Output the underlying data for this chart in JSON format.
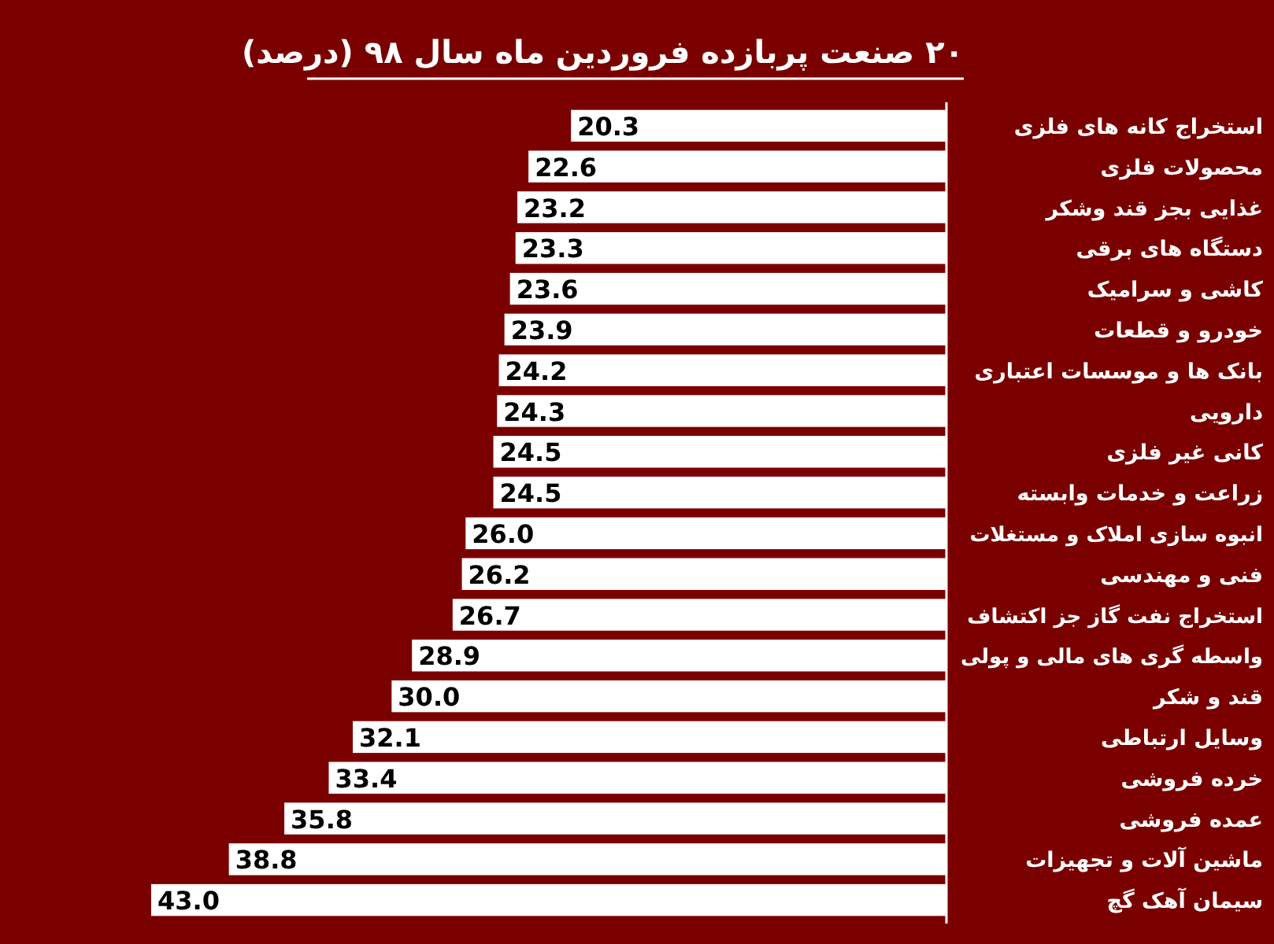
{
  "chart_data": {
    "type": "bar",
    "orientation": "horizontal",
    "title": "۲۰ صنعت پربازده فروردین ماه سال ۹۸ (درصد)",
    "categories": [
      "استخراج کانه های فلزی",
      "محصولات فلزی",
      "غذایی بجز قند وشکر",
      "دستگاه های برقی",
      "کاشی و سرامیک",
      "خودرو و قطعات",
      "بانک ها و موسسات اعتباری",
      "دارویی",
      "کانی غیر فلزی",
      "زراعت و خدمات وابسته",
      "انبوه سازی املاک و مستغلات",
      "فنی و مهندسی",
      "استخراج نفت گاز جز اکتشاف",
      "واسطه گری های مالی و پولی",
      "قند و شکر",
      "وسایل ارتباطی",
      "خرده فروشی",
      "عمده فروشی",
      "ماشین آلات و تجهیزات",
      "سیمان آهک گچ"
    ],
    "values": [
      20.3,
      22.6,
      23.2,
      23.3,
      23.6,
      23.9,
      24.2,
      24.3,
      24.5,
      24.5,
      26.0,
      26.2,
      26.7,
      28.9,
      30.0,
      32.1,
      33.4,
      35.8,
      38.8,
      43.0
    ],
    "value_labels": [
      "20.3",
      "22.6",
      "23.2",
      "23.3",
      "23.6",
      "23.9",
      "24.2",
      "24.3",
      "24.5",
      "24.5",
      "26.0",
      "26.2",
      "26.7",
      "28.9",
      "30.0",
      "32.1",
      "33.4",
      "35.8",
      "38.8",
      "43.0"
    ],
    "color": "#ffffff"
  }
}
